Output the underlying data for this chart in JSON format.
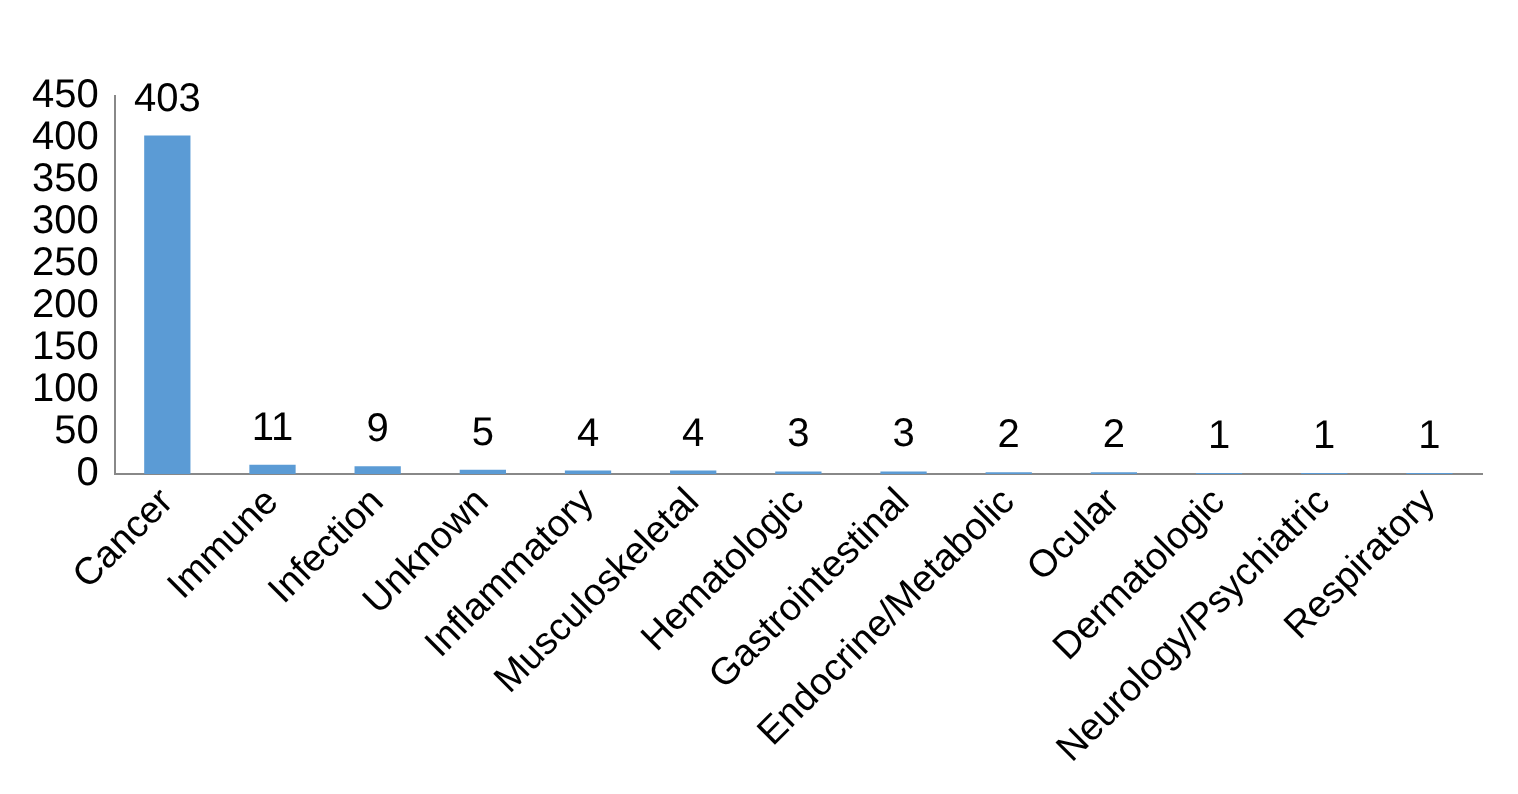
{
  "chart_data": {
    "type": "bar",
    "categories": [
      "Cancer",
      "Immune",
      "Infection",
      "Unknown",
      "Inflammatory",
      "Musculoskeletal",
      "Hematologic",
      "Gastrointestinal",
      "Endocrine/Metabolic",
      "Ocular",
      "Dermatologic",
      "Neurology/Psychiatric",
      "Respiratory"
    ],
    "values": [
      403,
      11,
      9,
      5,
      4,
      4,
      3,
      3,
      2,
      2,
      1,
      1,
      1
    ],
    "color": "#5b9bd5",
    "ylim": [
      0,
      450
    ],
    "yticks": [
      0,
      50,
      100,
      150,
      200,
      250,
      300,
      350,
      400,
      450
    ],
    "grid": false,
    "legend": false,
    "data_labels": true
  }
}
